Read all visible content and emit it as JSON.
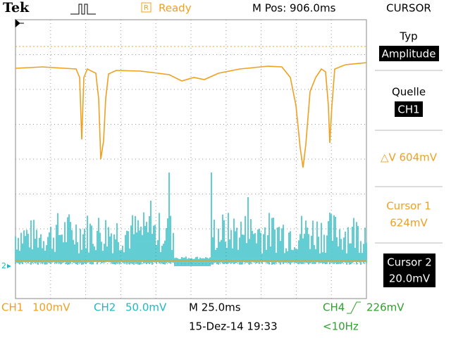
{
  "header": {
    "brand": "Tek",
    "status": "Ready",
    "position": "M Pos: 906.0ms",
    "menu": "CURSOR"
  },
  "side_menu": {
    "type_label": "Typ",
    "type_value": "Amplitude",
    "source_label": "Quelle",
    "source_value": "CH1",
    "delta": "△V 604mV",
    "cursor1_label": "Cursor 1",
    "cursor1_value": "624mV",
    "cursor2_label": "Cursor 2",
    "cursor2_value": "20.0mV"
  },
  "screen": {
    "ground_marker": "2"
  },
  "footer": {
    "ch1": "CH1",
    "ch1_scale": "100mV",
    "ch2": "CH2",
    "ch2_scale": "50.0mV",
    "timebase": "M 25.0ms",
    "trigger_source": "CH4",
    "trigger_level": "226mV",
    "datetime": "15-Dez-14 19:33",
    "frequency": "<10Hz"
  }
}
